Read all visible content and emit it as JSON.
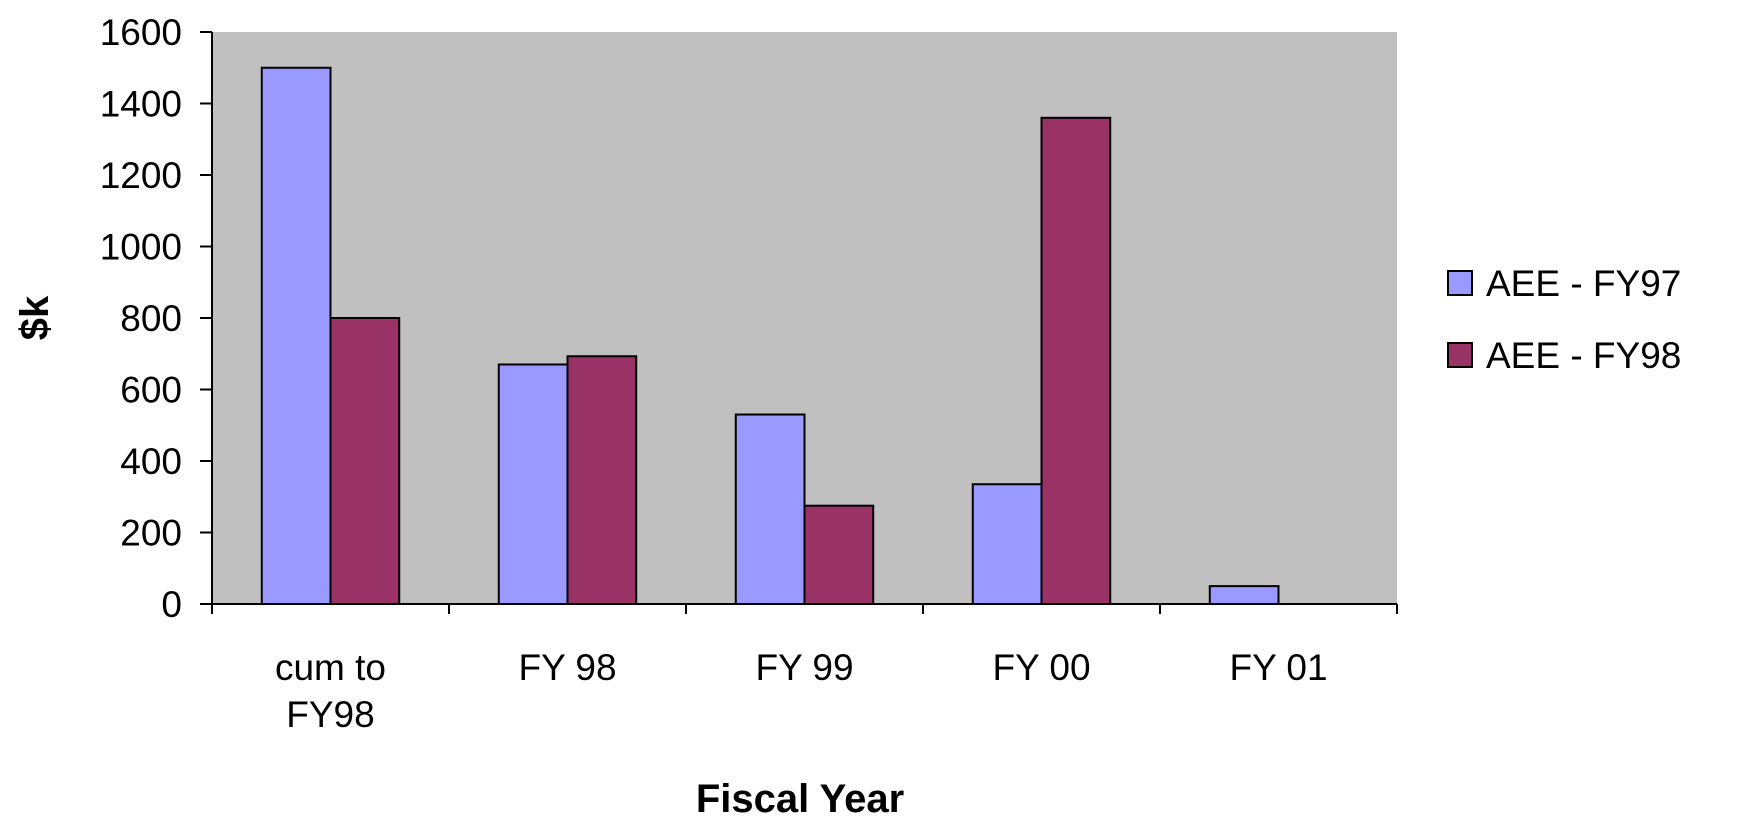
{
  "chart_data": {
    "type": "bar",
    "title": "",
    "xlabel": "Fiscal Year",
    "ylabel": "$k",
    "ylim": [
      0,
      1600
    ],
    "yticks": [
      0,
      200,
      400,
      600,
      800,
      1000,
      1200,
      1400,
      1600
    ],
    "categories": [
      [
        "cum to",
        "FY98"
      ],
      [
        "FY 98"
      ],
      [
        "FY 99"
      ],
      [
        "FY 00"
      ],
      [
        "FY 01"
      ]
    ],
    "series": [
      {
        "name": "AEE - FY97",
        "color": "#9999ff",
        "values": [
          1500,
          670,
          530,
          335,
          50
        ]
      },
      {
        "name": "AEE - FY98",
        "color": "#993366",
        "values": [
          800,
          693,
          275,
          1360,
          null
        ]
      }
    ],
    "grid": false,
    "plot_background": "#c0c0c0",
    "legend_position": "right"
  }
}
